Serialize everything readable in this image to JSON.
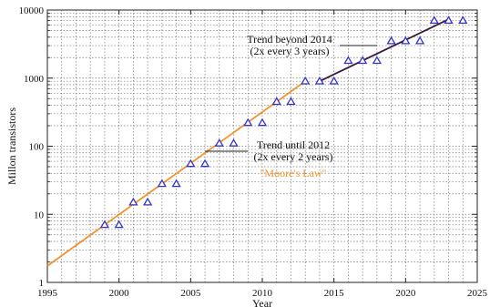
{
  "chart_data": {
    "type": "scatter",
    "title": "",
    "xlabel": "Year",
    "ylabel": "Millon transistors",
    "xlim": [
      1995,
      2025
    ],
    "ylim": [
      1,
      10000
    ],
    "yscale": "log",
    "grid": true,
    "x_ticks": [
      1995,
      2000,
      2005,
      2010,
      2015,
      2020,
      2025
    ],
    "y_ticks": [
      1,
      10,
      100,
      1000,
      10000
    ],
    "series": [
      {
        "marker": "triangle",
        "color": "#3333cc",
        "points": [
          {
            "x": 1999,
            "y": 7
          },
          {
            "x": 2000,
            "y": 7
          },
          {
            "x": 2001,
            "y": 15
          },
          {
            "x": 2002,
            "y": 15
          },
          {
            "x": 2003,
            "y": 28
          },
          {
            "x": 2004,
            "y": 28
          },
          {
            "x": 2005,
            "y": 55
          },
          {
            "x": 2006,
            "y": 55
          },
          {
            "x": 2007,
            "y": 110
          },
          {
            "x": 2008,
            "y": 110
          },
          {
            "x": 2009,
            "y": 220
          },
          {
            "x": 2010,
            "y": 220
          },
          {
            "x": 2011,
            "y": 450
          },
          {
            "x": 2012,
            "y": 450
          },
          {
            "x": 2013,
            "y": 900
          },
          {
            "x": 2014,
            "y": 900
          },
          {
            "x": 2015,
            "y": 900
          },
          {
            "x": 2016,
            "y": 1800
          },
          {
            "x": 2017,
            "y": 1800
          },
          {
            "x": 2018,
            "y": 1800
          },
          {
            "x": 2019,
            "y": 3500
          },
          {
            "x": 2020,
            "y": 3500
          },
          {
            "x": 2021,
            "y": 3500
          },
          {
            "x": 2022,
            "y": 7000
          },
          {
            "x": 2023,
            "y": 7000
          },
          {
            "x": 2024,
            "y": 7000
          }
        ]
      }
    ],
    "trend_lines": [
      {
        "color": "#f5922a",
        "from": {
          "x": 1995,
          "y": 1.75
        },
        "to": {
          "x": 2013,
          "y": 900
        }
      },
      {
        "color": "#3a1a3a",
        "from": {
          "x": 2014,
          "y": 900
        },
        "to": {
          "x": 2023,
          "y": 7300
        }
      }
    ],
    "annotations": [
      {
        "lines": [
          "Trend beyond 2014",
          "(2x every 3 years)"
        ],
        "color": "#111111",
        "pointer": {
          "x": 2018,
          "y": 2900
        }
      },
      {
        "lines": [
          "Trend until 2012",
          "(2x every 2 years)"
        ],
        "color": "#111111",
        "pointer": {
          "x": 2006,
          "y": 80
        }
      },
      {
        "lines": [
          "\"Moore's Law\""
        ],
        "color": "#f5922a"
      }
    ]
  }
}
